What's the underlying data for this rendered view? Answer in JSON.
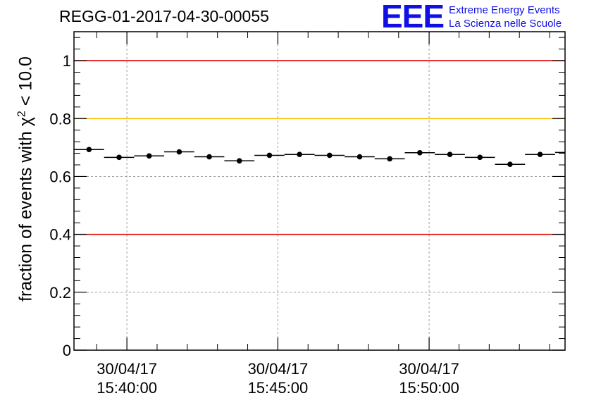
{
  "header": {
    "run_title": "REGG-01-2017-04-30-00055",
    "logo_text": "EEE",
    "logo_line1": "Extreme Energy Events",
    "logo_line2": "La Scienza nelle Scuole"
  },
  "colors": {
    "red_line": "#e00000",
    "yellow_line": "#ffc000",
    "logo": "#1010e6",
    "grid": "#a0a0a0",
    "marker": "#000000"
  },
  "chart_data": {
    "type": "scatter",
    "title": "REGG-01-2017-04-30-00055",
    "ylabel_prefix": "fraction of events with ",
    "ylabel_symbol": "χ",
    "ylabel_sup": "2",
    "ylabel_suffix": " < 10.0",
    "xlabel": "",
    "ylim": [
      0,
      1.1
    ],
    "xlim": [
      0,
      16.33
    ],
    "grid": true,
    "x_unit": "bin",
    "yticks": [
      {
        "value": 0,
        "label": "0"
      },
      {
        "value": 0.2,
        "label": "0.2"
      },
      {
        "value": 0.4,
        "label": "0.4"
      },
      {
        "value": 0.6,
        "label": "0.6"
      },
      {
        "value": 0.8,
        "label": "0.8"
      },
      {
        "value": 1,
        "label": "1"
      }
    ],
    "xticks": [
      {
        "value": 1.76,
        "date": "30/04/17",
        "time": "15:40:00"
      },
      {
        "value": 6.78,
        "date": "30/04/17",
        "time": "15:45:00"
      },
      {
        "value": 11.81,
        "date": "30/04/17",
        "time": "15:50:00"
      }
    ],
    "reference_lines": [
      {
        "y": 1.0,
        "color": "red"
      },
      {
        "y": 0.8,
        "color": "yellow"
      },
      {
        "y": 0.4,
        "color": "red"
      }
    ],
    "series": [
      {
        "name": "fraction",
        "bin_width": 1,
        "x": [
          0.5,
          1.5,
          2.5,
          3.5,
          4.5,
          5.5,
          6.5,
          7.5,
          8.5,
          9.5,
          10.5,
          11.5,
          12.5,
          13.5,
          14.5,
          15.5,
          16.5
        ],
        "y": [
          0.693,
          0.666,
          0.671,
          0.685,
          0.668,
          0.654,
          0.673,
          0.676,
          0.673,
          0.668,
          0.661,
          0.682,
          0.676,
          0.666,
          0.642,
          0.676,
          0.683
        ]
      }
    ]
  }
}
